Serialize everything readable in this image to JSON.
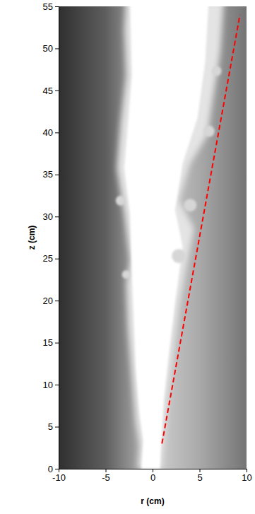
{
  "chart_data": {
    "type": "line",
    "x_label": "r (cm)",
    "y_label": "z (cm)",
    "x": [
      1,
      9.3
    ],
    "values": [
      3,
      54
    ],
    "color": "#ff0000",
    "line_style": "dashed",
    "xlim": [
      -10,
      10
    ],
    "xticks": [
      -10,
      -5,
      0,
      5,
      10
    ],
    "ylim": [
      0,
      55
    ],
    "yticks": [
      0,
      5,
      10,
      15,
      20,
      25,
      30,
      35,
      40,
      45,
      50,
      55
    ]
  }
}
